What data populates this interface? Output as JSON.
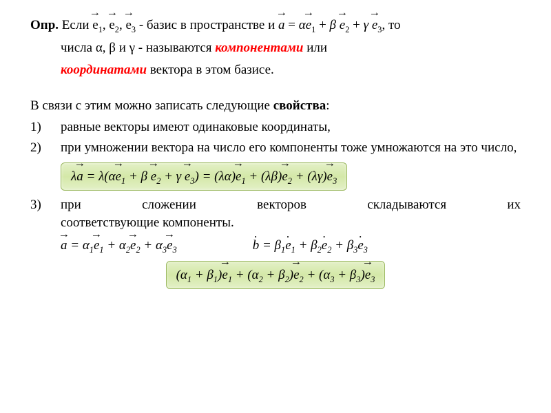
{
  "colors": {
    "text": "#000000",
    "background": "#ffffff",
    "accent_red": "#ff0000",
    "box_bg_top": "#e3f0c6",
    "box_bg_mid": "#d4e8a8",
    "box_border": "#9ab85f"
  },
  "def": {
    "opr": "Опр.",
    "t1": " Если ",
    "e1": "e",
    "s1": "1",
    "comma1": ", ",
    "e2": "e",
    "s2": "2",
    "comma2": ", ",
    "e3": "e",
    "s3": "3",
    "t2": " - базис в пространстве и   ",
    "eq_a": "a",
    "eq_eq": " = ",
    "alpha": "α",
    "eq_e1": "e",
    "eq_s1": "1",
    "plus1": " + ",
    "beta": "β ",
    "eq_e2": "e",
    "eq_s2": "2",
    "plus2": " + ",
    "gamma": "γ ",
    "eq_e3": "e",
    "eq_s3": "3",
    "t3": ", то",
    "line2a": "числа α, β и γ - называются ",
    "em1": "компонентами",
    "line2b": " или",
    "em2": "координатами",
    "line3": " вектора  в этом базисе."
  },
  "props_intro_a": "В связи с этим можно записать следующие ",
  "props_intro_b": "свойства",
  "props_intro_c": ":",
  "items": {
    "n1": "1)",
    "t1": " равные векторы имеют одинаковые координаты,",
    "n2": "2)",
    "t2": "при умножении вектора на число его компоненты тоже умножаются на это число,",
    "n3": "3)",
    "t3a": "при",
    "t3b": "сложении",
    "t3c": "векторов",
    "t3d": "складываются",
    "t3e": "их",
    "t3f": "соответствующие компоненты."
  },
  "formula1": {
    "lhs_l": "λ",
    "lhs_a": "a",
    "eq": " = ",
    "mid_l": "λ(α",
    "mid_e1": "e",
    "mid_s1": "1",
    "mid_p1": " + β ",
    "mid_e2": "e",
    "mid_s2": "2",
    "mid_p2": " + γ ",
    "mid_e3": "e",
    "mid_s3": "3",
    "mid_close": ") = (λα)",
    "r_e1": "e",
    "r_s1": "1",
    "r_p1": " + (λβ)",
    "r_e2": "e",
    "r_s2": "2",
    "r_p2": " + (λγ)",
    "r_e3": "e",
    "r_s3": "3"
  },
  "eq_a": {
    "a": "a",
    "eq": " = α",
    "s1": "1",
    "e1": "e",
    "es1": "1",
    "p1": " + α",
    "s2": "2",
    "e2": "e",
    "es2": "2",
    "p2": " + α",
    "s3": "3",
    "e3": "e",
    "es3": "3"
  },
  "eq_b": {
    "b": "b",
    "eq": " = β",
    "s1": "1",
    "e1": "e",
    "es1": "1",
    "p1": " + β",
    "s2": "2",
    "e2": "e",
    "es2": "2",
    "p2": " + β",
    "s3": "3",
    "e3": "e",
    "es3": "3"
  },
  "formula2": {
    "t1": "(α",
    "a1": "1",
    "p1": " + β",
    "b1": "1",
    "cp1": ")",
    "e1": "e",
    "es1": "1",
    "t2": " + (α",
    "a2": "2",
    "p2": " + β",
    "b2": "2",
    "cp2": ")",
    "e2": "e",
    "es2": "2",
    "t3": " + (α",
    "a3": "3",
    "p3": " + β",
    "b3": "3",
    "cp3": ")",
    "e3": "e",
    "es3": "3"
  }
}
